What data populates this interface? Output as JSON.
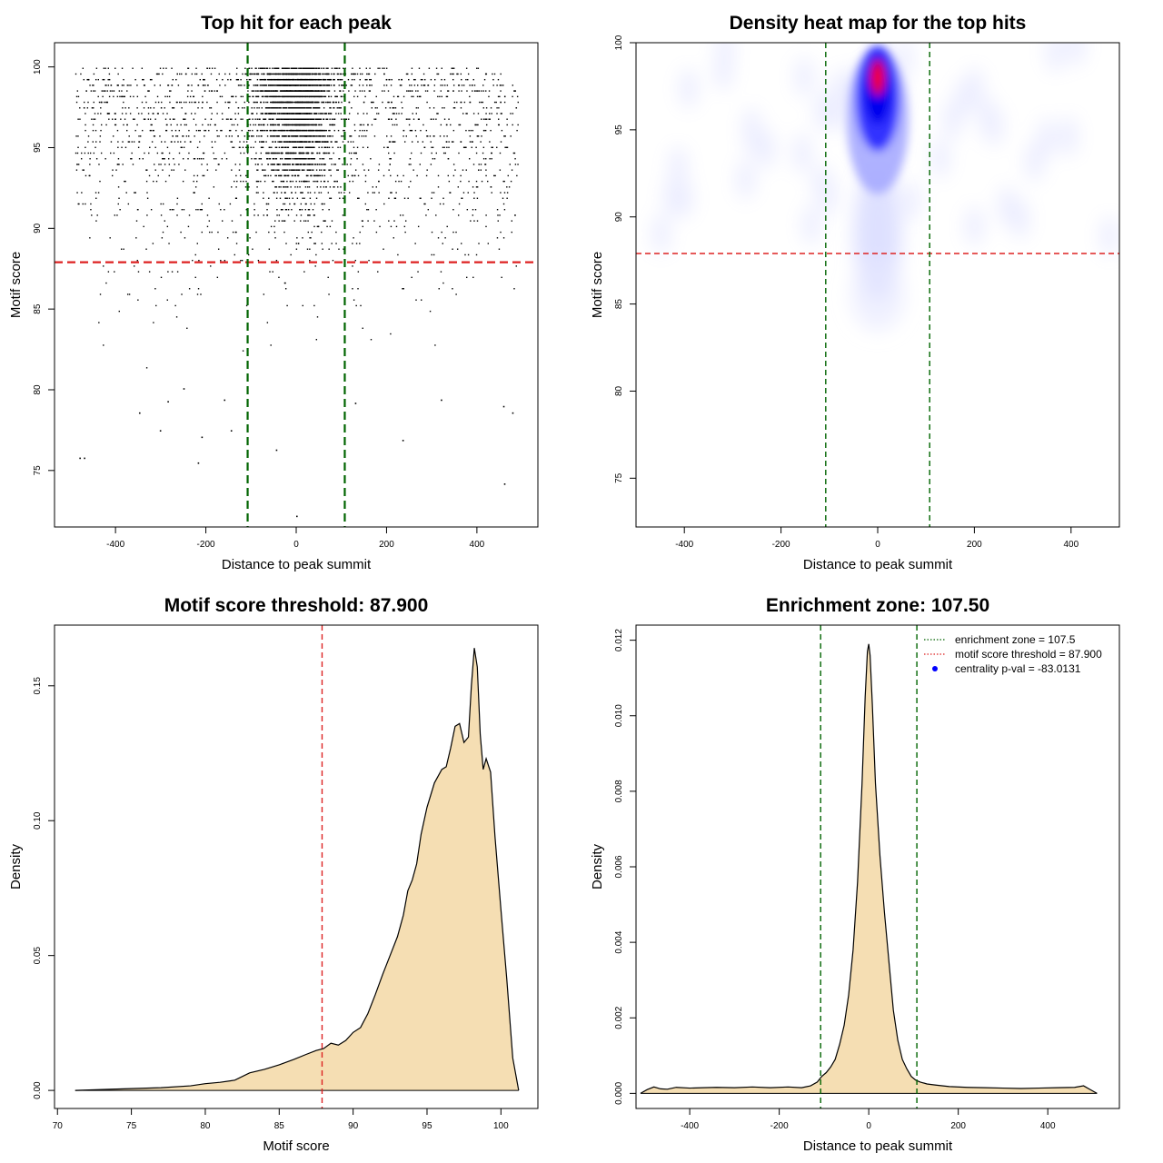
{
  "chart_data": [
    {
      "type": "scatter",
      "title": "Top hit for each peak",
      "xlabel": "Distance to peak summit",
      "ylabel": "Motif score",
      "xlim": [
        -535,
        535
      ],
      "ylim": [
        71.5,
        101.5
      ],
      "xticks": [
        -400,
        -200,
        0,
        200,
        400
      ],
      "yticks": [
        75,
        80,
        85,
        90,
        95,
        100
      ],
      "hlines": [
        {
          "y": 87.9,
          "color": "#dd2222",
          "style": "dashed"
        }
      ],
      "vlines": [
        {
          "x": -107.5,
          "color": "#006400",
          "style": "dashed"
        },
        {
          "x": 107.5,
          "color": "#006400",
          "style": "dashed"
        }
      ],
      "note_points": "dense cloud of per-peak top hits, concentrated within the enrichment zone and at scores above 88",
      "sample_points": [
        [
          0,
          72.2
        ],
        [
          -470,
          75.8
        ],
        [
          -480,
          75.8
        ],
        [
          -218,
          75.5
        ],
        [
          460,
          74.2
        ],
        [
          -302,
          77.5
        ],
        [
          -210,
          77.1
        ],
        [
          -145,
          77.5
        ],
        [
          -348,
          78.6
        ],
        [
          -285,
          79.3
        ],
        [
          -45,
          76.3
        ],
        [
          235,
          76.9
        ],
        [
          320,
          79.4
        ],
        [
          478,
          78.6
        ],
        [
          458,
          79.0
        ],
        [
          -160,
          79.4
        ],
        [
          130,
          79.2
        ],
        [
          -250,
          80.1
        ]
      ]
    },
    {
      "type": "heatmap",
      "title": "Density heat map for the top hits",
      "xlabel": "Distance to peak summit",
      "ylabel": "Motif score",
      "xlim": [
        -500,
        500
      ],
      "ylim": [
        72.2,
        100
      ],
      "xticks": [
        -400,
        -200,
        0,
        200,
        400
      ],
      "yticks": [
        75,
        80,
        85,
        90,
        95,
        100
      ],
      "hlines": [
        {
          "y": 87.9,
          "color": "#dd2222",
          "style": "dashed"
        }
      ],
      "vlines": [
        {
          "x": -107.5,
          "color": "#006400",
          "style": "dashed"
        },
        {
          "x": 107.5,
          "color": "#006400",
          "style": "dashed"
        }
      ],
      "hotspot": {
        "x": 0,
        "y": 98
      },
      "colors": [
        "#ffffff",
        "#0000ff",
        "#ff0000"
      ]
    },
    {
      "type": "area",
      "title": "Motif score threshold: 87.900",
      "xlabel": "Motif score",
      "ylabel": "Density",
      "xlim": [
        69.8,
        102.5
      ],
      "ylim": [
        -0.0067,
        0.1725
      ],
      "xticks": [
        70,
        75,
        80,
        85,
        90,
        95,
        100
      ],
      "yticks": [
        0.0,
        0.05,
        0.1,
        0.15
      ],
      "ytick_labels": [
        "0.00",
        "0.05",
        "0.10",
        "0.15"
      ],
      "fill": "#f5deb3",
      "vlines": [
        {
          "x": 87.9,
          "color": "#dd2222",
          "style": "dashed"
        }
      ],
      "x": [
        71.2,
        74,
        77,
        79,
        80,
        81,
        82,
        83,
        84,
        85,
        86,
        86.8,
        87.5,
        88,
        88.5,
        89,
        89.5,
        90,
        90.5,
        91,
        91.5,
        92,
        92.5,
        93,
        93.4,
        93.7,
        94,
        94.3,
        94.6,
        95,
        95.5,
        96,
        96.3,
        96.6,
        96.9,
        97.2,
        97.5,
        97.8,
        98,
        98.2,
        98.4,
        98.6,
        98.8,
        99,
        99.3,
        99.6,
        100,
        100.4,
        100.8,
        101.2
      ],
      "y": [
        0.0,
        0.0005,
        0.001,
        0.0017,
        0.0025,
        0.003,
        0.0038,
        0.0065,
        0.0078,
        0.0095,
        0.0115,
        0.0133,
        0.0148,
        0.0155,
        0.0175,
        0.0168,
        0.0185,
        0.0215,
        0.0233,
        0.0285,
        0.0355,
        0.043,
        0.05,
        0.057,
        0.065,
        0.074,
        0.078,
        0.084,
        0.095,
        0.105,
        0.114,
        0.119,
        0.12,
        0.127,
        0.135,
        0.136,
        0.129,
        0.131,
        0.15,
        0.164,
        0.157,
        0.132,
        0.119,
        0.123,
        0.118,
        0.094,
        0.067,
        0.041,
        0.012,
        0.0
      ]
    },
    {
      "type": "area",
      "title": "Enrichment zone: 107.50",
      "xlabel": "Distance to peak summit",
      "ylabel": "Density",
      "xlim": [
        -520,
        560
      ],
      "ylim": [
        -0.0004,
        0.0124
      ],
      "xticks": [
        -400,
        -200,
        0,
        200,
        400
      ],
      "yticks": [
        0.0,
        0.002,
        0.004,
        0.006,
        0.008,
        0.01,
        0.012
      ],
      "ytick_labels": [
        "0.000",
        "0.002",
        "0.004",
        "0.006",
        "0.008",
        "0.010",
        "0.012"
      ],
      "fill": "#f5deb3",
      "vlines": [
        {
          "x": -107.5,
          "color": "#006400",
          "style": "dashed"
        },
        {
          "x": 107.5,
          "color": "#006400",
          "style": "dashed"
        }
      ],
      "x": [
        -510,
        -495,
        -480,
        -465,
        -450,
        -430,
        -400,
        -370,
        -340,
        -300,
        -260,
        -220,
        -180,
        -150,
        -130,
        -115,
        -105,
        -95,
        -85,
        -75,
        -65,
        -55,
        -45,
        -35,
        -25,
        -15,
        -8,
        -3,
        0,
        3,
        8,
        15,
        25,
        35,
        45,
        55,
        65,
        75,
        85,
        95,
        105,
        115,
        130,
        150,
        180,
        220,
        260,
        300,
        340,
        380,
        420,
        460,
        480,
        495,
        510
      ],
      "y": [
        0.0,
        0.0001,
        0.00017,
        0.00012,
        0.00011,
        0.00016,
        0.00014,
        0.00015,
        0.00016,
        0.00015,
        0.00017,
        0.00015,
        0.00017,
        0.00015,
        0.0002,
        0.0003,
        0.00045,
        0.00055,
        0.0007,
        0.0009,
        0.0013,
        0.0018,
        0.0026,
        0.0038,
        0.0056,
        0.0082,
        0.0105,
        0.0117,
        0.0119,
        0.0116,
        0.0103,
        0.0082,
        0.0063,
        0.0048,
        0.0035,
        0.0022,
        0.0014,
        0.0009,
        0.00065,
        0.00045,
        0.00035,
        0.0003,
        0.00025,
        0.00022,
        0.00018,
        0.00016,
        0.00015,
        0.00014,
        0.00013,
        0.00014,
        0.00015,
        0.00016,
        0.0002,
        0.0001,
        0.0
      ],
      "legend": {
        "placement": "top-right",
        "entries": [
          {
            "label": "enrichment zone = 107.5",
            "color": "#006400",
            "style": "dotted"
          },
          {
            "label": "motif score threshold = 87.900",
            "color": "#dd2222",
            "style": "dotted"
          },
          {
            "label": "centrality p-val = -83.0131",
            "color": "#0000ff",
            "style": "point"
          }
        ]
      }
    }
  ]
}
